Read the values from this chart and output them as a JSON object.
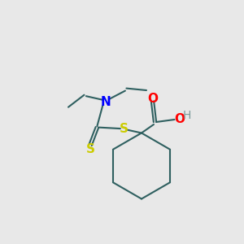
{
  "bg_color": "#e8e8e8",
  "bond_color": "#2F6060",
  "N_color": "#0000FF",
  "S_color": "#CCCC00",
  "O_color": "#FF0000",
  "H_color": "#7a9a9a",
  "lw": 1.5,
  "fs": 11,
  "xlim": [
    0,
    10
  ],
  "ylim": [
    0,
    10
  ],
  "figsize": [
    3.0,
    3.0
  ],
  "dpi": 100
}
